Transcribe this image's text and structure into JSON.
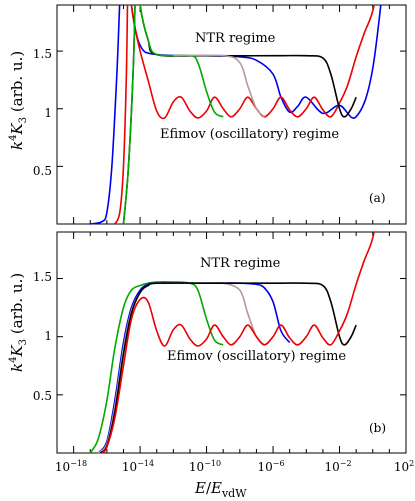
{
  "chart_data": [
    {
      "type": "line",
      "panel_label": "(a)",
      "ylabel": "k⁴K₃ (arb. u.)",
      "xlabel": "",
      "xscale": "log",
      "xlim": [
        1e-19,
        100
      ],
      "ylim": [
        0,
        1.9
      ],
      "y_ticks": [
        "0.5",
        "1",
        "1.5"
      ],
      "annotations": [
        "NTR regime",
        "Efimov (oscillatory) regime"
      ],
      "series": [
        {
          "color": "#0000ee",
          "x": [
            "1e-17",
            "5e-17",
            "1e-16",
            "2e-16",
            "4e-16",
            "1e-15",
            "3e-15",
            "1e-14",
            "1e-13",
            "1e-10",
            "1e-8",
            "1e-7",
            "1e-6",
            "3e-6",
            "1e-5",
            "3e-5",
            "1e-4",
            "1e-3",
            "1e-2",
            "1e-1",
            "1",
            "10"
          ],
          "y": [
            0.0,
            0.02,
            0.1,
            0.5,
            1.3,
            2.5,
            1.9,
            1.55,
            1.47,
            1.46,
            1.45,
            1.42,
            1.3,
            1.1,
            0.97,
            1.02,
            1.1,
            0.96,
            1.03,
            0.93,
            1.35,
            2.6
          ]
        },
        {
          "color": "#ee0000",
          "x": [
            "3e-16",
            "6e-16",
            "1e-15",
            "1.5e-15",
            "2e-15",
            "3e-15",
            "5e-15",
            "1e-14",
            "3e-14",
            "1e-13",
            "3e-13",
            "1e-12",
            "3e-12",
            "1e-11",
            "3e-11",
            "1e-10",
            "3e-10",
            "1e-9",
            "3e-9",
            "1e-8",
            "3e-8",
            "1e-7",
            "3e-7",
            "1e-6",
            "3e-6",
            "1e-5",
            "3e-5",
            "1e-4",
            "3e-4",
            "1e-3",
            "3e-3",
            "1e-2",
            "3e-2",
            "1e-1",
            "3e-1",
            "1",
            "3"
          ],
          "y": [
            0.0,
            0.1,
            0.5,
            1.3,
            2.3,
            1.9,
            1.7,
            1.5,
            1.25,
            0.98,
            0.92,
            1.06,
            1.1,
            0.98,
            0.92,
            0.98,
            1.1,
            1.0,
            0.93,
            1.0,
            1.1,
            1.0,
            0.93,
            1.0,
            1.1,
            0.99,
            0.93,
            1.0,
            1.1,
            0.99,
            0.93,
            1.05,
            1.2,
            1.45,
            1.65,
            1.85,
            2.2
          ]
        },
        {
          "color": "#000000",
          "x": [
            "1e-15",
            "2e-15",
            "4e-15",
            "6e-15",
            "1e-14",
            "3e-14",
            "1e-13",
            "1e-10",
            "1e-6",
            "1e-4",
            "1e-3",
            "3e-3",
            "1e-2",
            "2e-2",
            "5e-2",
            "1e-1"
          ],
          "y": [
            0.0,
            0.5,
            1.4,
            2.3,
            1.9,
            1.6,
            1.47,
            1.46,
            1.46,
            1.46,
            1.44,
            1.3,
            1.0,
            0.93,
            1.0,
            1.1
          ]
        },
        {
          "color": "#00aa00",
          "x": [
            "1e-15",
            "2e-15",
            "4e-15",
            "6e-15",
            "1e-14",
            "3e-14",
            "1e-13",
            "1e-11",
            "3e-11",
            "1e-10",
            "3e-10",
            "1e-9"
          ],
          "y": [
            0.0,
            0.5,
            1.4,
            2.3,
            1.9,
            1.6,
            1.47,
            1.46,
            1.4,
            1.15,
            0.97,
            0.93
          ]
        },
        {
          "color": "#b39b9b",
          "x": [
            "1e-12",
            "1e-9",
            "1e-8",
            "3e-8",
            "1e-7",
            "3e-7"
          ],
          "y": [
            1.46,
            1.46,
            1.4,
            1.2,
            1.0,
            0.93
          ]
        }
      ]
    },
    {
      "type": "line",
      "panel_label": "(b)",
      "ylabel": "k⁴K₃ (arb. u.)",
      "xlabel": "E/EᵥdW",
      "xscale": "log",
      "xlim": [
        1e-19,
        100
      ],
      "ylim": [
        0,
        1.9
      ],
      "y_ticks": [
        "0.5",
        "1",
        "1.5"
      ],
      "x_ticks": [
        "10⁻¹⁸",
        "10⁻¹⁴",
        "10⁻¹⁰",
        "10⁻⁶",
        "10⁻²",
        "10²"
      ],
      "annotations": [
        "NTR regime",
        "Efimov (oscillatory) regime"
      ],
      "series": [
        {
          "color": "#00aa00",
          "x": [
            "1e-17",
            "3e-17",
            "1e-16",
            "3e-16",
            "1e-15",
            "3e-15",
            "1e-14",
            "3e-14",
            "1e-13",
            "1e-12",
            "1e-11",
            "3e-11",
            "1e-10",
            "3e-10",
            "1e-9"
          ],
          "y": [
            0.0,
            0.12,
            0.45,
            0.9,
            1.25,
            1.4,
            1.44,
            1.46,
            1.47,
            1.47,
            1.46,
            1.4,
            1.15,
            0.97,
            0.93
          ]
        },
        {
          "color": "#0000ee",
          "x": [
            "3e-17",
            "1e-16",
            "3e-16",
            "1e-15",
            "3e-15",
            "1e-14",
            "3e-14",
            "1e-13",
            "1e-10",
            "1e-8",
            "1e-7",
            "3e-7",
            "1e-6",
            "3e-6",
            "1e-5"
          ],
          "y": [
            0.0,
            0.1,
            0.45,
            0.95,
            1.25,
            1.4,
            1.45,
            1.46,
            1.46,
            1.46,
            1.45,
            1.42,
            1.3,
            1.05,
            0.95
          ]
        },
        {
          "color": "#b39b9b",
          "x": [
            "3e-17",
            "1e-16",
            "3e-16",
            "1e-15",
            "3e-15",
            "1e-14",
            "3e-14",
            "1e-13",
            "1e-10",
            "1e-9",
            "1e-8",
            "3e-8",
            "1e-7",
            "3e-7"
          ],
          "y": [
            0.0,
            0.08,
            0.4,
            0.9,
            1.22,
            1.38,
            1.44,
            1.46,
            1.46,
            1.46,
            1.4,
            1.2,
            1.0,
            0.93
          ]
        },
        {
          "color": "#000000",
          "x": [
            "4e-17",
            "1e-16",
            "3e-16",
            "1e-15",
            "3e-15",
            "1e-14",
            "3e-14",
            "1e-13",
            "1e-10",
            "1e-6",
            "1e-4",
            "1e-3",
            "3e-3",
            "1e-2",
            "2e-2",
            "5e-2",
            "1e-1"
          ],
          "y": [
            0.0,
            0.06,
            0.35,
            0.85,
            1.2,
            1.38,
            1.44,
            1.46,
            1.46,
            1.46,
            1.46,
            1.44,
            1.3,
            1.0,
            0.93,
            1.0,
            1.1
          ]
        },
        {
          "color": "#ee0000",
          "x": [
            "5e-17",
            "1e-16",
            "3e-16",
            "1e-15",
            "3e-15",
            "1e-14",
            "3e-14",
            "1e-13",
            "3e-13",
            "1e-12",
            "3e-12",
            "1e-11",
            "3e-11",
            "1e-10",
            "3e-10",
            "1e-9",
            "3e-9",
            "1e-8",
            "3e-8",
            "1e-7",
            "3e-7",
            "1e-6",
            "3e-6",
            "1e-5",
            "3e-5",
            "1e-4",
            "3e-4",
            "1e-3",
            "3e-3",
            "1e-2",
            "3e-2",
            "1e-1",
            "3e-1",
            "1",
            "3"
          ],
          "y": [
            0.0,
            0.05,
            0.3,
            0.75,
            1.15,
            1.32,
            1.3,
            1.05,
            0.92,
            1.06,
            1.1,
            0.98,
            0.92,
            0.98,
            1.1,
            1.0,
            0.93,
            1.0,
            1.1,
            1.0,
            0.93,
            1.0,
            1.1,
            0.99,
            0.93,
            1.0,
            1.1,
            0.99,
            0.93,
            1.05,
            1.2,
            1.45,
            1.65,
            1.85,
            2.2
          ]
        }
      ]
    }
  ]
}
